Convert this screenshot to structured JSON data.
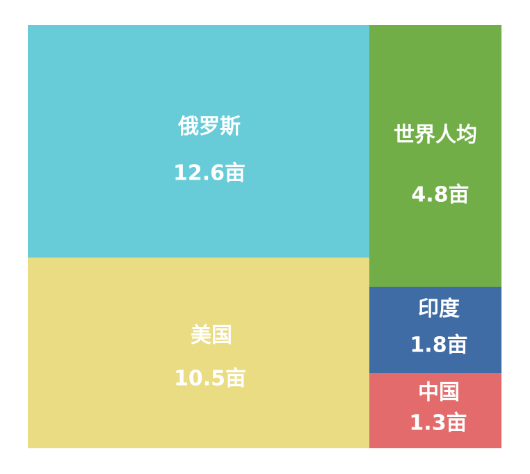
{
  "chart_data": {
    "type": "treemap",
    "items": [
      {
        "name": "俄罗斯",
        "value_label": "12.6亩",
        "value": 12.6,
        "unit": "亩",
        "color": "#67CCD8"
      },
      {
        "name": "美国",
        "value_label": "10.5亩",
        "value": 10.5,
        "unit": "亩",
        "color": "#EADC82"
      },
      {
        "name": "世界人均",
        "value_label": "4.8亩",
        "value": 4.8,
        "unit": "亩",
        "color": "#71AE48"
      },
      {
        "name": "印度",
        "value_label": "1.8亩",
        "value": 1.8,
        "unit": "亩",
        "color": "#3F6CA5"
      },
      {
        "name": "中国",
        "value_label": "1.3亩",
        "value": 1.3,
        "unit": "亩",
        "color": "#E36B6B"
      }
    ]
  }
}
